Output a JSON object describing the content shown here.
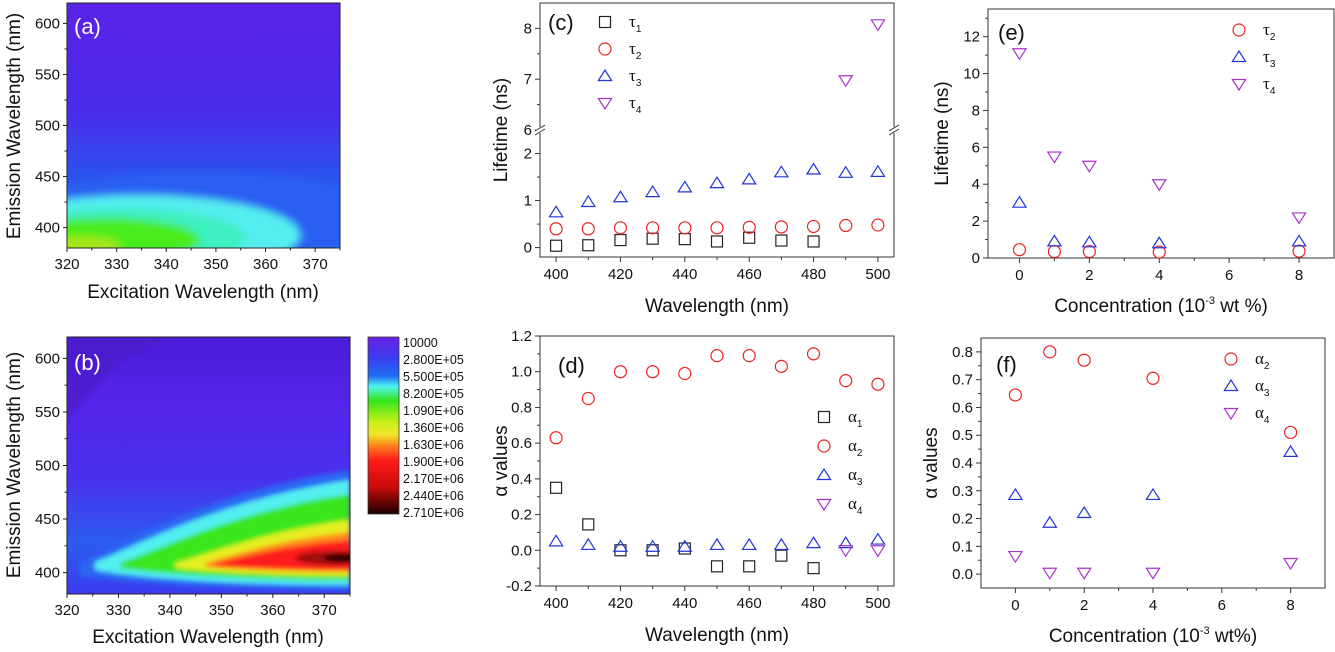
{
  "chart_data": [
    {
      "id": "a",
      "type": "heatmap",
      "panel_label": "(a)",
      "title": "",
      "xlabel": "Excitation Wavelength (nm)",
      "ylabel": "Emission Wavelength (nm)",
      "xlim": [
        320,
        375
      ],
      "ylim": [
        380,
        620
      ],
      "xticks": [
        320,
        330,
        340,
        350,
        360,
        370
      ],
      "yticks": [
        400,
        450,
        500,
        550,
        600
      ],
      "description": "Peak intensity (green/yellow-green) near excitation 320-340 nm, emission 385-410 nm; cyan halo up to ~440 nm emission; blue background elsewhere",
      "peak": {
        "x": 325,
        "y": 395,
        "level": "green"
      }
    },
    {
      "id": "b",
      "type": "heatmap",
      "panel_label": "(b)",
      "title": "",
      "xlabel": "Excitation Wavelength (nm)",
      "ylabel": "Emission Wavelength (nm)",
      "xlim": [
        320,
        375
      ],
      "ylim": [
        380,
        620
      ],
      "xticks": [
        320,
        330,
        340,
        350,
        360,
        370
      ],
      "yticks": [
        400,
        450,
        500,
        550,
        600
      ],
      "colorbar": {
        "levels": [
          "10000",
          "2.800E+05",
          "5.500E+05",
          "8.200E+05",
          "1.090E+06",
          "1.360E+06",
          "1.630E+06",
          "1.900E+06",
          "2.170E+06",
          "2.440E+06",
          "2.710E+06"
        ],
        "colors": [
          "#6a1fe6",
          "#3a3ef0",
          "#1f6cf5",
          "#4ff5f0",
          "#33e61a",
          "#c8ef1a",
          "#f0e62a",
          "#ff7a1a",
          "#ff1a1a",
          "#c80a0a",
          "#1a0000"
        ]
      },
      "description": "Emission band centered ~412 nm growing with excitation wavelength; maximum (black) at excitation ~370-375 nm, emission ~412 nm",
      "peak": {
        "x": 372,
        "y": 412,
        "level": "black"
      }
    },
    {
      "id": "c",
      "type": "scatter",
      "panel_label": "(c)",
      "xlabel": "Wavelength (nm)",
      "ylabel": "Lifetime (ns)",
      "xlim": [
        395,
        505
      ],
      "ylim_lower": [
        -0.2,
        2.5
      ],
      "ylim_upper": [
        6,
        8.5
      ],
      "axis_break": true,
      "xticks": [
        400,
        420,
        440,
        460,
        480,
        500
      ],
      "yticks": [
        0,
        1,
        2,
        6,
        7,
        8
      ],
      "legend": "top-left",
      "series": [
        {
          "name": "τ1",
          "symbol": "square",
          "color": "#222222",
          "x": [
            400,
            410,
            420,
            430,
            440,
            450,
            460,
            470,
            480
          ],
          "y": [
            0.04,
            0.05,
            0.16,
            0.19,
            0.18,
            0.13,
            0.21,
            0.15,
            0.13
          ]
        },
        {
          "name": "τ2",
          "symbol": "circle",
          "color": "#ee2222",
          "x": [
            400,
            410,
            420,
            430,
            440,
            450,
            460,
            470,
            480,
            490,
            500
          ],
          "y": [
            0.4,
            0.4,
            0.42,
            0.42,
            0.42,
            0.42,
            0.43,
            0.44,
            0.45,
            0.47,
            0.48
          ]
        },
        {
          "name": "τ3",
          "symbol": "triangle-up",
          "color": "#2233dd",
          "x": [
            400,
            410,
            420,
            430,
            440,
            450,
            460,
            470,
            480,
            490,
            500
          ],
          "y": [
            0.75,
            0.97,
            1.07,
            1.18,
            1.28,
            1.37,
            1.45,
            1.6,
            1.66,
            1.59,
            1.61
          ]
        },
        {
          "name": "τ4",
          "symbol": "triangle-down",
          "color": "#aa33cc",
          "x": [
            490,
            500
          ],
          "y": [
            6.98,
            8.08
          ]
        }
      ]
    },
    {
      "id": "d",
      "type": "scatter",
      "panel_label": "(d)",
      "xlabel": "Wavelength (nm)",
      "ylabel": "α values",
      "xlim": [
        395,
        505
      ],
      "ylim": [
        -0.2,
        1.2
      ],
      "xticks": [
        400,
        420,
        440,
        460,
        480,
        500
      ],
      "yticks": [
        -0.2,
        0.0,
        0.2,
        0.4,
        0.6,
        0.8,
        1.0,
        1.2
      ],
      "legend": "right",
      "series": [
        {
          "name": "α1",
          "symbol": "square",
          "color": "#222222",
          "x": [
            400,
            410,
            420,
            430,
            440,
            450,
            460,
            470,
            480
          ],
          "y": [
            0.35,
            0.145,
            0.0,
            0.0,
            0.01,
            -0.09,
            -0.09,
            -0.03,
            -0.1
          ]
        },
        {
          "name": "α2",
          "symbol": "circle",
          "color": "#ee2222",
          "x": [
            400,
            410,
            420,
            430,
            440,
            450,
            460,
            470,
            480,
            490,
            500
          ],
          "y": [
            0.63,
            0.85,
            1.0,
            1.0,
            0.99,
            1.09,
            1.09,
            1.03,
            1.1,
            0.95,
            0.93
          ]
        },
        {
          "name": "α3",
          "symbol": "triangle-up",
          "color": "#2233dd",
          "x": [
            400,
            410,
            420,
            430,
            440,
            450,
            460,
            470,
            480,
            490,
            500
          ],
          "y": [
            0.05,
            0.03,
            0.02,
            0.02,
            0.02,
            0.03,
            0.03,
            0.03,
            0.04,
            0.04,
            0.06
          ]
        },
        {
          "name": "α4",
          "symbol": "triangle-down",
          "color": "#aa33cc",
          "x": [
            490,
            500
          ],
          "y": [
            0.0,
            0.0
          ]
        }
      ]
    },
    {
      "id": "e",
      "type": "scatter",
      "panel_label": "(e)",
      "xlabel": "Concentration (10⁻³ wt %)",
      "xlabel_parts": [
        "Concentration (10",
        "-3",
        " wt %)"
      ],
      "ylabel": "Lifetime (ns)",
      "xlim": [
        -0.9,
        9.0
      ],
      "ylim": [
        0,
        13.5
      ],
      "xticks": [
        0,
        2,
        4,
        6,
        8
      ],
      "yticks": [
        0,
        2,
        4,
        6,
        8,
        10,
        12
      ],
      "legend": "top-right",
      "series": [
        {
          "name": "τ2",
          "symbol": "circle",
          "color": "#ee2222",
          "x": [
            0,
            1,
            2,
            4,
            8
          ],
          "y": [
            0.45,
            0.35,
            0.35,
            0.32,
            0.37
          ]
        },
        {
          "name": "τ3",
          "symbol": "triangle-up",
          "color": "#2233dd",
          "x": [
            0,
            1,
            2,
            4,
            8
          ],
          "y": [
            3.0,
            0.9,
            0.85,
            0.8,
            0.9
          ]
        },
        {
          "name": "τ4",
          "symbol": "triangle-down",
          "color": "#aa33cc",
          "x": [
            0,
            1,
            2,
            4,
            8
          ],
          "y": [
            11.1,
            5.5,
            5.0,
            4.0,
            2.2
          ]
        }
      ]
    },
    {
      "id": "f",
      "type": "scatter",
      "panel_label": "(f)",
      "xlabel": "Concentration (10⁻³ wt%)",
      "xlabel_parts": [
        "Concentration (10",
        "-3",
        " wt%)"
      ],
      "ylabel": "α values",
      "xlim": [
        -1.0,
        9.0
      ],
      "ylim": [
        -0.05,
        0.85
      ],
      "xticks": [
        0,
        2,
        4,
        6,
        8
      ],
      "yticks": [
        0.0,
        0.1,
        0.2,
        0.3,
        0.4,
        0.5,
        0.6,
        0.7,
        0.8
      ],
      "legend": "top-right",
      "series": [
        {
          "name": "α2",
          "symbol": "circle",
          "color": "#ee2222",
          "x": [
            0,
            1,
            2,
            4,
            8
          ],
          "y": [
            0.645,
            0.8,
            0.77,
            0.705,
            0.51
          ]
        },
        {
          "name": "α3",
          "symbol": "triangle-up",
          "color": "#2233dd",
          "x": [
            0,
            1,
            2,
            4,
            8
          ],
          "y": [
            0.285,
            0.185,
            0.22,
            0.285,
            0.44
          ]
        },
        {
          "name": "α4",
          "symbol": "triangle-down",
          "color": "#aa33cc",
          "x": [
            0,
            1,
            2,
            4,
            8
          ],
          "y": [
            0.065,
            0.005,
            0.005,
            0.005,
            0.04
          ]
        }
      ]
    }
  ]
}
